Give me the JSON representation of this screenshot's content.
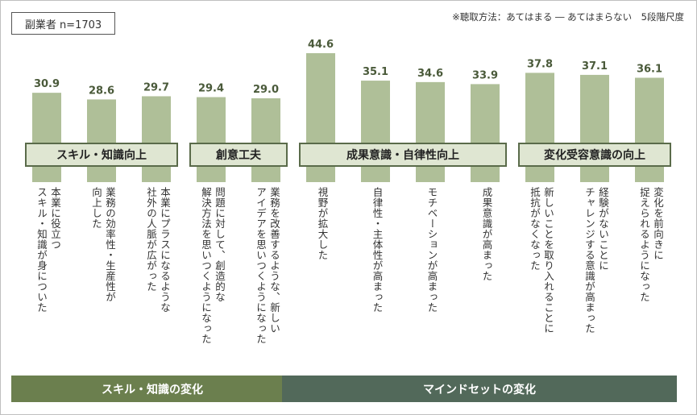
{
  "sample_label": "副業者 n=1703",
  "method_note": "※聴取方法：あてはまる ― あてはまらない　5段階尺度",
  "chart_data": {
    "type": "bar",
    "categories": [
      "本業に役立つ\nスキル・知識が身についた",
      "業務の効率性・生産性が\n向上した",
      "本業にプラスになるような\n社外の人脈が広がった",
      "問題に対して、創造的な\n解決方法を思いつくようになった",
      "業務を改善するような、新しい\nアイデアを思いつくようになった",
      "視野が拡大した",
      "自律性・主体性が高まった",
      "モチベーションが高まった",
      "成果意識が高まった",
      "新しいことを取り入れることに\n抵抗がなくなった",
      "経験がないことに\nチャレンジする意識が高まった",
      "変化を前向きに\n捉えられるようになった"
    ],
    "values": [
      30.9,
      28.6,
      29.7,
      29.4,
      29.0,
      44.6,
      35.1,
      34.6,
      33.9,
      37.8,
      37.1,
      36.1
    ],
    "value_labels": [
      "30.9",
      "28.6",
      "29.7",
      "29.4",
      "29.0",
      "44.6",
      "35.1",
      "34.6",
      "33.9",
      "37.8",
      "37.1",
      "36.1"
    ],
    "groups": [
      {
        "label": "スキル・知識向上",
        "from": 0,
        "to": 2
      },
      {
        "label": "創意工夫",
        "from": 3,
        "to": 4
      },
      {
        "label": "成果意識・自律性向上",
        "from": 5,
        "to": 8
      },
      {
        "label": "変化受容意識の向上",
        "from": 9,
        "to": 11
      }
    ],
    "super_groups": [
      {
        "label": "スキル・知識の変化",
        "from": 0,
        "to": 4,
        "color": "#6b7f4e"
      },
      {
        "label": "マインドセットの変化",
        "from": 5,
        "to": 11,
        "color": "#52695a"
      }
    ],
    "bar_color": "#afbf98",
    "grid": false,
    "legend": "none"
  }
}
